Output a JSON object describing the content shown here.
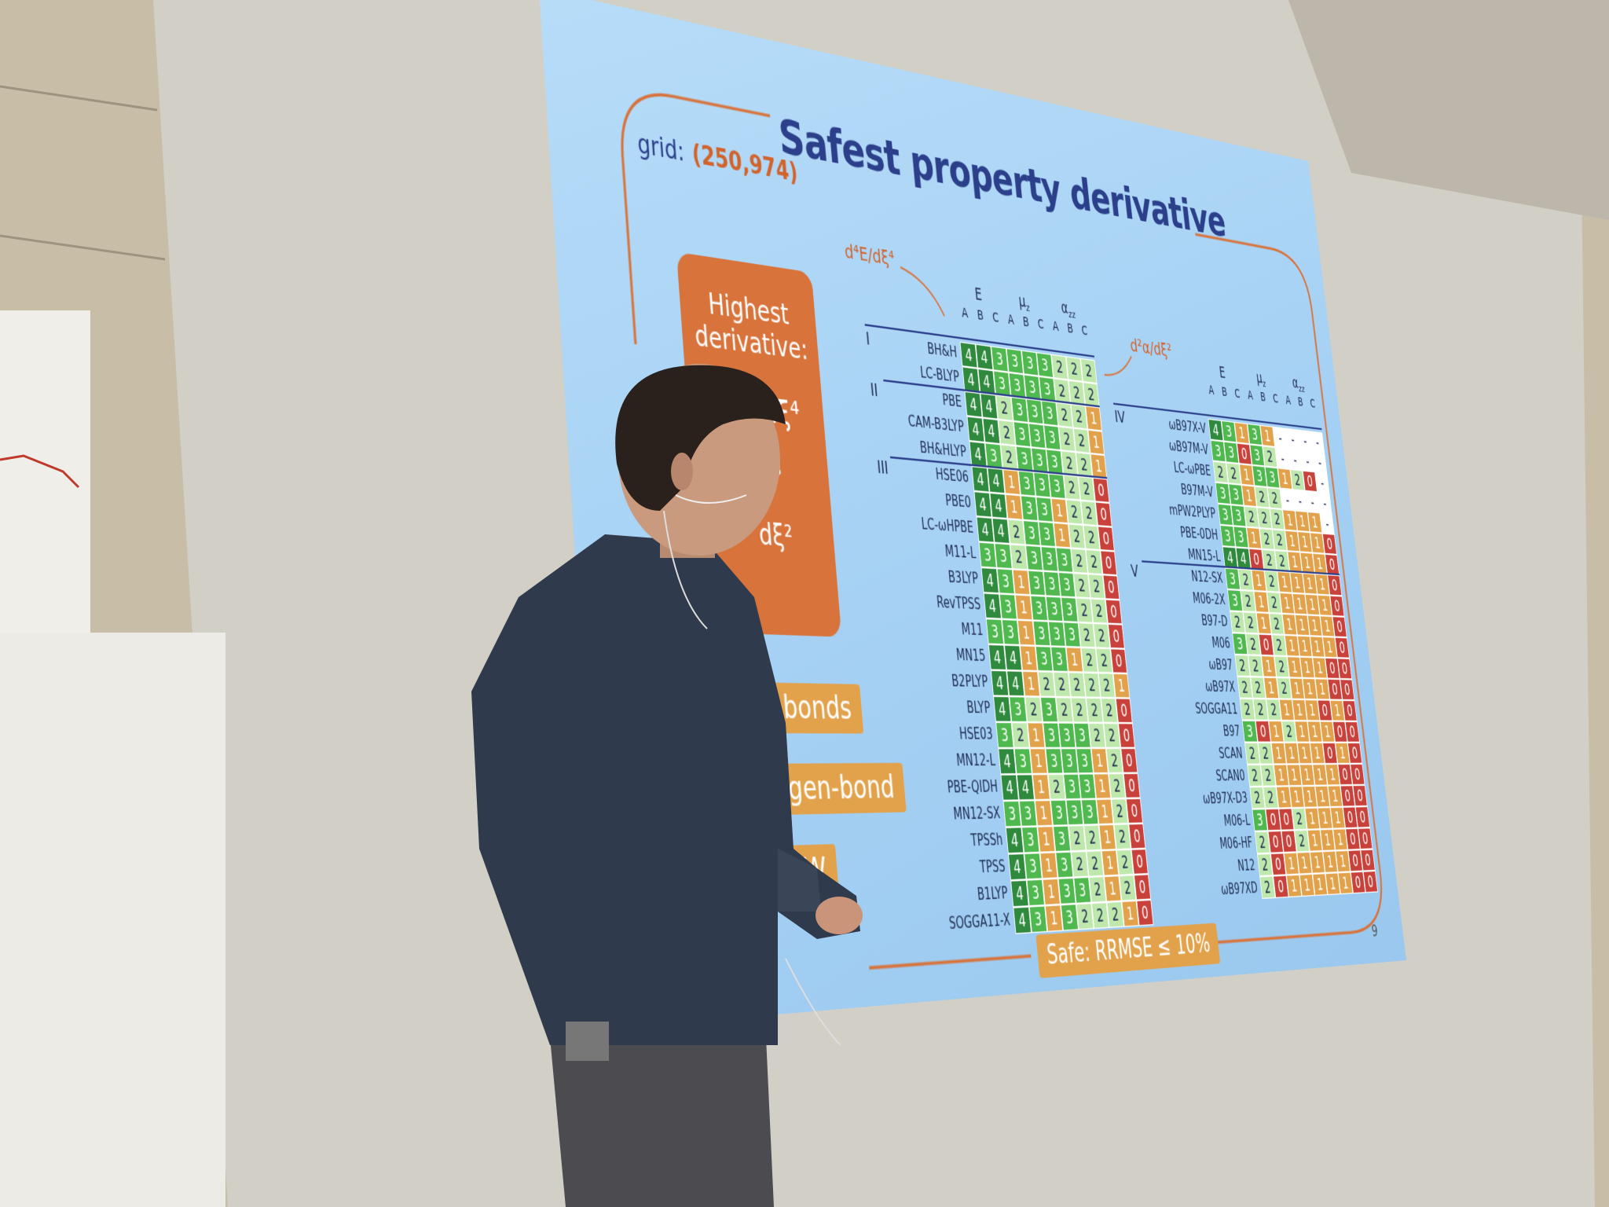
{
  "slide": {
    "title": "Safest property derivative",
    "grid_label": "grid:",
    "grid_value": "(250,974)",
    "annotation_left": "d⁴E/dξ⁴",
    "annotation_right": "d²α/dξ²",
    "box_heading": "Highest derivative:",
    "box_formula": "d⁴E/dξ⁴",
    "box_partial_1": "ξ³",
    "box_partial_2": "dξ²",
    "tags": [
      "bonds",
      "ogen-bond",
      "W"
    ],
    "footer": "Safe: RRMSE ≤ 10%",
    "page_number": "9"
  },
  "tables": [
    {
      "column_groups": [
        {
          "symbol": "E"
        },
        {
          "symbol": "μ",
          "subscript": "z"
        },
        {
          "symbol": "α",
          "subscript": "zz"
        }
      ],
      "subcolumns": [
        "A",
        "B",
        "C"
      ],
      "rows": [
        {
          "group": "I",
          "name": "BH&H",
          "cells": [
            "4",
            "4",
            "3",
            "3",
            "3",
            "3",
            "2",
            "2",
            "2"
          ]
        },
        {
          "name": "LC-BLYP",
          "cells": [
            "4",
            "4",
            "3",
            "3",
            "3",
            "3",
            "2",
            "2",
            "2"
          ]
        },
        {
          "group": "II",
          "name": "PBE",
          "cells": [
            "4",
            "4",
            "2",
            "3",
            "3",
            "3",
            "2",
            "2",
            "1"
          ]
        },
        {
          "name": "CAM-B3LYP",
          "cells": [
            "4",
            "4",
            "2",
            "3",
            "3",
            "3",
            "2",
            "2",
            "1"
          ]
        },
        {
          "name": "BH&HLYP",
          "cells": [
            "4",
            "3",
            "2",
            "3",
            "3",
            "3",
            "2",
            "2",
            "1"
          ]
        },
        {
          "group": "III",
          "name": "HSE06",
          "cells": [
            "4",
            "4",
            "1",
            "3",
            "3",
            "3",
            "2",
            "2",
            "0"
          ]
        },
        {
          "name": "PBE0",
          "cells": [
            "4",
            "4",
            "1",
            "3",
            "3",
            "1",
            "2",
            "2",
            "0"
          ]
        },
        {
          "name": "LC-ωHPBE",
          "cells": [
            "4",
            "4",
            "2",
            "3",
            "3",
            "1",
            "2",
            "2",
            "0"
          ]
        },
        {
          "name": "M11-L",
          "cells": [
            "3",
            "3",
            "2",
            "3",
            "3",
            "3",
            "2",
            "2",
            "0"
          ]
        },
        {
          "name": "B3LYP",
          "cells": [
            "4",
            "3",
            "1",
            "3",
            "3",
            "3",
            "2",
            "2",
            "0"
          ]
        },
        {
          "name": "RevTPSS",
          "cells": [
            "4",
            "3",
            "1",
            "3",
            "3",
            "3",
            "2",
            "2",
            "0"
          ]
        },
        {
          "name": "M11",
          "cells": [
            "3",
            "3",
            "1",
            "3",
            "3",
            "3",
            "2",
            "2",
            "0"
          ]
        },
        {
          "name": "MN15",
          "cells": [
            "4",
            "4",
            "1",
            "3",
            "3",
            "1",
            "2",
            "2",
            "0"
          ]
        },
        {
          "name": "B2PLYP",
          "cells": [
            "4",
            "4",
            "1",
            "2",
            "2",
            "2",
            "2",
            "2",
            "1"
          ]
        },
        {
          "name": "BLYP",
          "cells": [
            "4",
            "3",
            "2",
            "3",
            "2",
            "2",
            "2",
            "2",
            "0"
          ]
        },
        {
          "name": "HSE03",
          "cells": [
            "3",
            "2",
            "1",
            "3",
            "3",
            "3",
            "2",
            "2",
            "0"
          ]
        },
        {
          "name": "MN12-L",
          "cells": [
            "4",
            "3",
            "1",
            "3",
            "3",
            "3",
            "1",
            "2",
            "0"
          ]
        },
        {
          "name": "PBE-QIDH",
          "cells": [
            "4",
            "4",
            "1",
            "2",
            "3",
            "3",
            "1",
            "2",
            "0"
          ]
        },
        {
          "name": "MN12-SX",
          "cells": [
            "3",
            "3",
            "1",
            "3",
            "3",
            "3",
            "1",
            "2",
            "0"
          ]
        },
        {
          "name": "TPSSh",
          "cells": [
            "4",
            "3",
            "1",
            "3",
            "2",
            "2",
            "1",
            "2",
            "0"
          ]
        },
        {
          "name": "TPSS",
          "cells": [
            "4",
            "3",
            "1",
            "3",
            "2",
            "2",
            "1",
            "2",
            "0"
          ]
        },
        {
          "name": "B1LYP",
          "cells": [
            "4",
            "3",
            "1",
            "3",
            "3",
            "2",
            "1",
            "2",
            "0"
          ]
        },
        {
          "name": "SOGGA11-X",
          "cells": [
            "4",
            "3",
            "1",
            "3",
            "2",
            "2",
            "2",
            "1",
            "0"
          ]
        }
      ]
    },
    {
      "column_groups": [
        {
          "symbol": "E"
        },
        {
          "symbol": "μ",
          "subscript": "z"
        },
        {
          "symbol": "α",
          "subscript": "zz"
        }
      ],
      "subcolumns": [
        "A",
        "B",
        "C"
      ],
      "rows": [
        {
          "group": "IV",
          "name": "ωB97X-V",
          "cells": [
            "4",
            "3",
            "1",
            "3",
            "1",
            "-",
            "-",
            "-",
            "-"
          ]
        },
        {
          "name": "ωB97M-V",
          "cells": [
            "3",
            "3",
            "0",
            "3",
            "2",
            "-",
            "-",
            "-",
            "-"
          ]
        },
        {
          "name": "LC-ωPBE",
          "cells": [
            "2",
            "2",
            "1",
            "3",
            "3",
            "1",
            "2",
            "0",
            "-"
          ]
        },
        {
          "name": "B97M-V",
          "cells": [
            "3",
            "3",
            "1",
            "2",
            "2",
            "-",
            "-",
            "-",
            "-"
          ]
        },
        {
          "name": "mPW2PLYP",
          "cells": [
            "3",
            "3",
            "2",
            "2",
            "2",
            "1",
            "1",
            "1",
            "-"
          ]
        },
        {
          "name": "PBE-0DH",
          "cells": [
            "3",
            "3",
            "1",
            "2",
            "2",
            "1",
            "1",
            "1",
            "0"
          ]
        },
        {
          "name": "MN15-L",
          "cells": [
            "4",
            "4",
            "0",
            "2",
            "2",
            "1",
            "1",
            "1",
            "0"
          ]
        },
        {
          "group": "V",
          "name": "N12-SX",
          "cells": [
            "3",
            "2",
            "1",
            "2",
            "1",
            "1",
            "1",
            "1",
            "0"
          ]
        },
        {
          "name": "M06-2X",
          "cells": [
            "3",
            "2",
            "1",
            "2",
            "1",
            "1",
            "1",
            "1",
            "0"
          ]
        },
        {
          "name": "B97-D",
          "cells": [
            "2",
            "2",
            "1",
            "2",
            "1",
            "1",
            "1",
            "1",
            "0"
          ]
        },
        {
          "name": "M06",
          "cells": [
            "3",
            "2",
            "0",
            "2",
            "1",
            "1",
            "1",
            "1",
            "0"
          ]
        },
        {
          "name": "ωB97",
          "cells": [
            "2",
            "2",
            "1",
            "2",
            "1",
            "1",
            "1",
            "0",
            "0"
          ]
        },
        {
          "name": "ωB97X",
          "cells": [
            "2",
            "2",
            "1",
            "2",
            "1",
            "1",
            "1",
            "0",
            "0"
          ]
        },
        {
          "name": "SOGGA11",
          "cells": [
            "2",
            "2",
            "2",
            "1",
            "1",
            "1",
            "0",
            "1",
            "0"
          ]
        },
        {
          "name": "B97",
          "cells": [
            "3",
            "0",
            "1",
            "2",
            "1",
            "1",
            "1",
            "0",
            "0"
          ]
        },
        {
          "name": "SCAN",
          "cells": [
            "2",
            "2",
            "1",
            "1",
            "1",
            "1",
            "0",
            "1",
            "0"
          ]
        },
        {
          "name": "SCAN0",
          "cells": [
            "2",
            "2",
            "1",
            "1",
            "1",
            "1",
            "1",
            "0",
            "0"
          ]
        },
        {
          "name": "ωB97X-D3",
          "cells": [
            "2",
            "2",
            "1",
            "1",
            "1",
            "1",
            "1",
            "0",
            "0"
          ]
        },
        {
          "name": "M06-L",
          "cells": [
            "3",
            "0",
            "0",
            "2",
            "1",
            "1",
            "1",
            "0",
            "0"
          ]
        },
        {
          "name": "M06-HF",
          "cells": [
            "2",
            "0",
            "0",
            "2",
            "1",
            "1",
            "1",
            "0",
            "0"
          ]
        },
        {
          "name": "N12",
          "cells": [
            "2",
            "0",
            "1",
            "1",
            "1",
            "1",
            "1",
            "0",
            "0"
          ]
        },
        {
          "name": "ωB97XD",
          "cells": [
            "2",
            "0",
            "1",
            "1",
            "1",
            "1",
            "1",
            "0",
            "0"
          ]
        }
      ]
    }
  ]
}
